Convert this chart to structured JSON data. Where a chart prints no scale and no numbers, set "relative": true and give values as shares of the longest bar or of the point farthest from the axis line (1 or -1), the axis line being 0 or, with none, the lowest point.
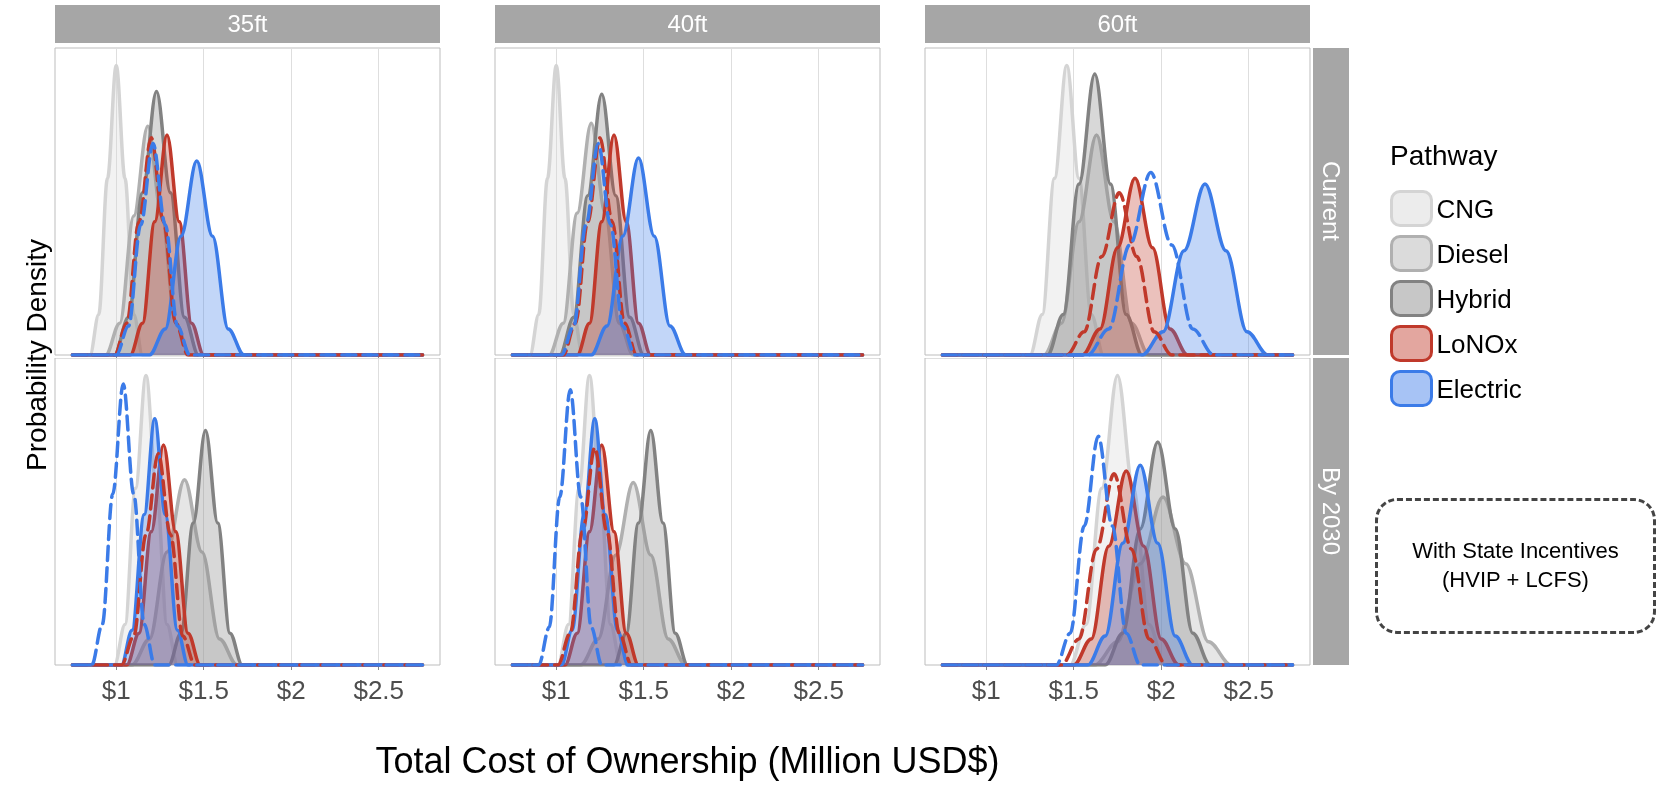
{
  "chart_data": [
    {
      "type": "area",
      "title": "35ft",
      "ylabel": "Probability Density",
      "relative": true,
      "grid": "x",
      "tick_labels": false,
      "xlim": [
        0.65,
        2.85
      ],
      "xticks": [
        {
          "value": 1,
          "label": null
        },
        {
          "value": 1.5,
          "label": null
        },
        {
          "value": 2,
          "label": null
        },
        {
          "value": 2.5,
          "label": null
        }
      ],
      "series": [
        {
          "color": "#d4d4d4",
          "x": [
            0.75,
            0.85,
            0.9,
            0.95,
            1.0,
            1.05,
            1.1,
            1.15,
            2.75
          ],
          "values": [
            0,
            0,
            0.14,
            0.61,
            1,
            0.61,
            0.14,
            0,
            0
          ]
        },
        {
          "color": "#b0b0b0",
          "x": [
            0.75,
            0.94,
            1.02,
            1.1,
            1.18,
            1.26,
            1.34,
            1.42,
            2.75
          ],
          "values": [
            0,
            0,
            0.11,
            0.48,
            0.79,
            0.48,
            0.11,
            0,
            0
          ]
        },
        {
          "color": "#828282",
          "x": [
            0.75,
            0.99,
            1.07,
            1.15,
            1.23,
            1.31,
            1.39,
            1.47,
            2.75
          ],
          "values": [
            0,
            0,
            0.13,
            0.56,
            0.91,
            0.56,
            0.13,
            0,
            0
          ]
        },
        {
          "color": "#c0392b",
          "x": [
            0.75,
            1.08,
            1.15,
            1.22,
            1.29,
            1.36,
            1.43,
            1.5,
            2.75
          ],
          "values": [
            0,
            0,
            0.11,
            0.46,
            0.76,
            0.46,
            0.11,
            0,
            0
          ]
        },
        {
          "color": "#3b7be8",
          "x": [
            0.75,
            1.19,
            1.28,
            1.37,
            1.46,
            1.55,
            1.64,
            1.73,
            2.75
          ],
          "values": [
            0,
            0,
            0.09,
            0.41,
            0.67,
            0.41,
            0.09,
            0,
            0
          ]
        },
        {
          "type": "line",
          "line_style": "dashed",
          "color": "#c0392b",
          "x": [
            0.75,
            0.99,
            1.06,
            1.13,
            1.2,
            1.27,
            1.34,
            1.41,
            2.75
          ],
          "values": [
            0,
            0,
            0.11,
            0.46,
            0.75,
            0.46,
            0.11,
            0,
            0
          ]
        },
        {
          "type": "line",
          "line_style": "dashed",
          "color": "#3b7be8",
          "x": [
            0.75,
            1.0,
            1.07,
            1.14,
            1.21,
            1.28,
            1.35,
            1.42,
            2.75
          ],
          "values": [
            0,
            0,
            0.1,
            0.45,
            0.73,
            0.45,
            0.1,
            0,
            0
          ]
        }
      ]
    },
    {
      "type": "area",
      "title": "40ft",
      "relative": true,
      "grid": "x",
      "tick_labels": false,
      "xlim": [
        0.65,
        2.85
      ],
      "xticks": [
        {
          "value": 1,
          "label": null
        },
        {
          "value": 1.5,
          "label": null
        },
        {
          "value": 2,
          "label": null
        },
        {
          "value": 2.5,
          "label": null
        }
      ],
      "series": [
        {
          "color": "#d4d4d4",
          "x": [
            0.75,
            0.85,
            0.9,
            0.95,
            1.0,
            1.05,
            1.1,
            1.15,
            2.75
          ],
          "values": [
            0,
            0,
            0.14,
            0.61,
            1,
            0.61,
            0.14,
            0,
            0
          ]
        },
        {
          "color": "#b0b0b0",
          "x": [
            0.75,
            0.96,
            1.04,
            1.12,
            1.2,
            1.28,
            1.36,
            1.44,
            2.75
          ],
          "values": [
            0,
            0,
            0.11,
            0.49,
            0.8,
            0.49,
            0.11,
            0,
            0
          ]
        },
        {
          "color": "#828282",
          "x": [
            0.75,
            1.02,
            1.1,
            1.18,
            1.26,
            1.34,
            1.42,
            1.5,
            2.75
          ],
          "values": [
            0,
            0,
            0.13,
            0.55,
            0.9,
            0.55,
            0.13,
            0,
            0
          ]
        },
        {
          "color": "#c0392b",
          "x": [
            0.75,
            1.12,
            1.19,
            1.26,
            1.33,
            1.4,
            1.47,
            1.54,
            2.75
          ],
          "values": [
            0,
            0,
            0.11,
            0.46,
            0.76,
            0.46,
            0.11,
            0,
            0
          ]
        },
        {
          "color": "#3b7be8",
          "x": [
            0.75,
            1.2,
            1.29,
            1.38,
            1.47,
            1.56,
            1.65,
            1.74,
            2.75
          ],
          "values": [
            0,
            0,
            0.1,
            0.41,
            0.68,
            0.41,
            0.1,
            0,
            0
          ]
        },
        {
          "type": "line",
          "line_style": "dashed",
          "color": "#c0392b",
          "x": [
            0.75,
            1.04,
            1.11,
            1.18,
            1.25,
            1.32,
            1.39,
            1.46,
            2.75
          ],
          "values": [
            0,
            0,
            0.11,
            0.46,
            0.75,
            0.46,
            0.11,
            0,
            0
          ]
        },
        {
          "type": "line",
          "line_style": "dashed",
          "color": "#3b7be8",
          "x": [
            0.75,
            1.03,
            1.1,
            1.17,
            1.24,
            1.31,
            1.38,
            1.45,
            2.75
          ],
          "values": [
            0,
            0,
            0.1,
            0.45,
            0.73,
            0.45,
            0.1,
            0,
            0
          ]
        }
      ]
    },
    {
      "type": "area",
      "title": "60ft",
      "annotations": [
        "Current"
      ],
      "legend": "right",
      "legend_title": "Pathway",
      "relative": true,
      "grid": "x",
      "tick_labels": false,
      "xlim": [
        0.65,
        2.85
      ],
      "xticks": [
        {
          "value": 1,
          "label": null
        },
        {
          "value": 1.5,
          "label": null
        },
        {
          "value": 2,
          "label": null
        },
        {
          "value": 2.5,
          "label": null
        }
      ],
      "series": [
        {
          "name": "CNG",
          "color": "#d4d4d4",
          "x": [
            0.75,
            1.25,
            1.32,
            1.39,
            1.46,
            1.53,
            1.6,
            1.67,
            2.75
          ],
          "values": [
            0,
            0,
            0.14,
            0.61,
            1,
            0.61,
            0.14,
            0,
            0
          ]
        },
        {
          "name": "Diesel",
          "color": "#b0b0b0",
          "x": [
            0.75,
            1.33,
            1.43,
            1.53,
            1.63,
            1.73,
            1.83,
            1.93,
            2.75
          ],
          "values": [
            0,
            0,
            0.11,
            0.46,
            0.76,
            0.46,
            0.11,
            0,
            0
          ]
        },
        {
          "name": "Hybrid",
          "color": "#828282",
          "x": [
            0.75,
            1.35,
            1.44,
            1.53,
            1.62,
            1.71,
            1.8,
            1.89,
            2.75
          ],
          "values": [
            0,
            0,
            0.14,
            0.59,
            0.97,
            0.59,
            0.14,
            0,
            0
          ]
        },
        {
          "name": "LoNOx",
          "color": "#c0392b",
          "x": [
            0.75,
            1.55,
            1.65,
            1.75,
            1.85,
            1.95,
            2.05,
            2.15,
            2.75
          ],
          "values": [
            0,
            0,
            0.09,
            0.37,
            0.61,
            0.37,
            0.09,
            0,
            0
          ]
        },
        {
          "name": "Electric",
          "color": "#3b7be8",
          "x": [
            0.75,
            1.89,
            2.01,
            2.13,
            2.25,
            2.37,
            2.49,
            2.61,
            2.75
          ],
          "values": [
            0,
            0,
            0.08,
            0.36,
            0.59,
            0.36,
            0.08,
            0,
            0
          ]
        },
        {
          "type": "line",
          "line_style": "dashed",
          "color": "#c0392b",
          "x": [
            0.75,
            1.46,
            1.56,
            1.66,
            1.76,
            1.86,
            1.96,
            2.06,
            2.75
          ],
          "values": [
            0,
            0,
            0.08,
            0.34,
            0.56,
            0.34,
            0.08,
            0,
            0
          ]
        },
        {
          "type": "line",
          "line_style": "dashed",
          "color": "#3b7be8",
          "x": [
            0.75,
            1.58,
            1.7,
            1.82,
            1.94,
            2.06,
            2.18,
            2.3,
            2.75
          ],
          "values": [
            0,
            0,
            0.09,
            0.38,
            0.63,
            0.38,
            0.09,
            0,
            0
          ]
        }
      ]
    },
    {
      "type": "area",
      "relative": true,
      "grid": "x",
      "tick_labels": "x",
      "xlim": [
        0.65,
        2.85
      ],
      "xticks": [
        {
          "value": 1,
          "label": "$1"
        },
        {
          "value": 1.5,
          "label": "$1.5"
        },
        {
          "value": 2,
          "label": "$2"
        },
        {
          "value": 2.5,
          "label": "$2.5"
        }
      ],
      "series": [
        {
          "color": "#d4d4d4",
          "x": [
            0.75,
            0.99,
            1.05,
            1.11,
            1.17,
            1.23,
            1.29,
            1.35,
            2.75
          ],
          "values": [
            0,
            0,
            0.14,
            0.61,
            1,
            0.61,
            0.14,
            0,
            0
          ]
        },
        {
          "color": "#b0b0b0",
          "x": [
            0.75,
            1.09,
            1.19,
            1.29,
            1.39,
            1.49,
            1.59,
            1.69,
            2.75
          ],
          "values": [
            0,
            0,
            0.09,
            0.39,
            0.64,
            0.39,
            0.09,
            0,
            0
          ]
        },
        {
          "color": "#828282",
          "x": [
            0.75,
            1.3,
            1.37,
            1.44,
            1.51,
            1.58,
            1.65,
            1.72,
            2.75
          ],
          "values": [
            0,
            0,
            0.11,
            0.49,
            0.81,
            0.49,
            0.11,
            0,
            0
          ]
        },
        {
          "color": "#c0392b",
          "x": [
            0.75,
            1.06,
            1.13,
            1.2,
            1.27,
            1.34,
            1.41,
            1.48,
            2.75
          ],
          "values": [
            0,
            0,
            0.11,
            0.46,
            0.76,
            0.46,
            0.11,
            0,
            0
          ]
        },
        {
          "color": "#3b7be8",
          "x": [
            0.75,
            1.03,
            1.09,
            1.16,
            1.22,
            1.28,
            1.35,
            1.41,
            2.75
          ],
          "values": [
            0,
            0,
            0.12,
            0.52,
            0.85,
            0.52,
            0.12,
            0,
            0
          ]
        },
        {
          "type": "line",
          "line_style": "dashed",
          "color": "#c0392b",
          "x": [
            0.75,
            1.03,
            1.1,
            1.17,
            1.24,
            1.31,
            1.38,
            1.45,
            2.75
          ],
          "values": [
            0,
            0,
            0.1,
            0.45,
            0.73,
            0.45,
            0.1,
            0,
            0
          ]
        },
        {
          "type": "line",
          "line_style": "dashed",
          "color": "#3b7be8",
          "x": [
            0.75,
            0.86,
            0.92,
            0.98,
            1.04,
            1.1,
            1.16,
            1.22,
            2.75
          ],
          "values": [
            0,
            0,
            0.14,
            0.59,
            0.97,
            0.59,
            0.14,
            0,
            0
          ]
        }
      ]
    },
    {
      "type": "area",
      "xlabel": "Total Cost of Ownership (Million USD$)",
      "relative": true,
      "grid": "x",
      "tick_labels": "x",
      "xlim": [
        0.65,
        2.85
      ],
      "xticks": [
        {
          "value": 1,
          "label": "$1"
        },
        {
          "value": 1.5,
          "label": "$1.5"
        },
        {
          "value": 2,
          "label": "$2"
        },
        {
          "value": 2.5,
          "label": "$2.5"
        }
      ],
      "series": [
        {
          "color": "#d4d4d4",
          "x": [
            0.75,
            1.01,
            1.07,
            1.13,
            1.19,
            1.25,
            1.31,
            1.37,
            2.75
          ],
          "values": [
            0,
            0,
            0.14,
            0.61,
            1,
            0.61,
            0.14,
            0,
            0
          ]
        },
        {
          "color": "#b0b0b0",
          "x": [
            0.75,
            1.14,
            1.24,
            1.34,
            1.44,
            1.54,
            1.64,
            1.74,
            2.75
          ],
          "values": [
            0,
            0,
            0.09,
            0.38,
            0.63,
            0.38,
            0.09,
            0,
            0
          ]
        },
        {
          "color": "#828282",
          "x": [
            0.75,
            1.33,
            1.4,
            1.47,
            1.54,
            1.61,
            1.68,
            1.75,
            2.75
          ],
          "values": [
            0,
            0,
            0.11,
            0.49,
            0.81,
            0.49,
            0.11,
            0,
            0
          ]
        },
        {
          "color": "#c0392b",
          "x": [
            0.75,
            1.05,
            1.12,
            1.19,
            1.26,
            1.33,
            1.4,
            1.47,
            2.75
          ],
          "values": [
            0,
            0,
            0.11,
            0.46,
            0.76,
            0.46,
            0.11,
            0,
            0
          ]
        },
        {
          "color": "#3b7be8",
          "x": [
            0.75,
            1.03,
            1.09,
            1.16,
            1.22,
            1.28,
            1.35,
            1.41,
            2.75
          ],
          "values": [
            0,
            0,
            0.12,
            0.52,
            0.85,
            0.52,
            0.12,
            0,
            0
          ]
        },
        {
          "type": "line",
          "line_style": "dashed",
          "color": "#c0392b",
          "x": [
            0.75,
            1.01,
            1.08,
            1.15,
            1.22,
            1.29,
            1.36,
            1.43,
            2.75
          ],
          "values": [
            0,
            0,
            0.11,
            0.46,
            0.75,
            0.46,
            0.11,
            0,
            0
          ]
        },
        {
          "type": "line",
          "line_style": "dashed",
          "color": "#3b7be8",
          "x": [
            0.75,
            0.9,
            0.96,
            1.02,
            1.08,
            1.14,
            1.2,
            1.26,
            2.75
          ],
          "values": [
            0,
            0,
            0.13,
            0.58,
            0.95,
            0.58,
            0.13,
            0,
            0
          ]
        }
      ]
    },
    {
      "type": "area",
      "annotations": [
        "By 2030",
        "With State Incentives (HVIP + LCFS)"
      ],
      "relative": true,
      "grid": "x",
      "tick_labels": "x",
      "xlim": [
        0.65,
        2.85
      ],
      "xticks": [
        {
          "value": 1,
          "label": "$1"
        },
        {
          "value": 1.5,
          "label": "$1.5"
        },
        {
          "value": 2,
          "label": "$2"
        },
        {
          "value": 2.5,
          "label": "$2.5"
        }
      ],
      "series": [
        {
          "color": "#d4d4d4",
          "x": [
            0.75,
            1.48,
            1.57,
            1.66,
            1.75,
            1.84,
            1.93,
            2.02,
            2.75
          ],
          "values": [
            0,
            0,
            0.14,
            0.61,
            1,
            0.61,
            0.14,
            0,
            0
          ]
        },
        {
          "color": "#b0b0b0",
          "x": [
            0.75,
            1.62,
            1.75,
            1.88,
            2.01,
            2.14,
            2.27,
            2.4,
            2.75
          ],
          "values": [
            0,
            0,
            0.08,
            0.35,
            0.58,
            0.35,
            0.08,
            0,
            0
          ]
        },
        {
          "color": "#828282",
          "x": [
            0.75,
            1.68,
            1.78,
            1.88,
            1.98,
            2.08,
            2.18,
            2.28,
            2.75
          ],
          "values": [
            0,
            0,
            0.11,
            0.47,
            0.77,
            0.47,
            0.11,
            0,
            0
          ]
        },
        {
          "color": "#c0392b",
          "x": [
            0.75,
            1.5,
            1.6,
            1.7,
            1.8,
            1.9,
            2.0,
            2.1,
            2.75
          ],
          "values": [
            0,
            0,
            0.09,
            0.41,
            0.67,
            0.41,
            0.09,
            0,
            0
          ]
        },
        {
          "color": "#3b7be8",
          "x": [
            0.75,
            1.58,
            1.68,
            1.78,
            1.88,
            1.98,
            2.08,
            2.18,
            2.75
          ],
          "values": [
            0,
            0,
            0.1,
            0.42,
            0.69,
            0.42,
            0.1,
            0,
            0
          ]
        },
        {
          "type": "line",
          "line_style": "dashed",
          "color": "#c0392b",
          "x": [
            0.75,
            1.43,
            1.53,
            1.63,
            1.73,
            1.83,
            1.93,
            2.03,
            2.75
          ],
          "values": [
            0,
            0,
            0.09,
            0.4,
            0.66,
            0.4,
            0.09,
            0,
            0
          ]
        },
        {
          "type": "line",
          "line_style": "dashed",
          "color": "#3b7be8",
          "x": [
            0.75,
            1.4,
            1.48,
            1.56,
            1.64,
            1.72,
            1.8,
            1.88,
            2.75
          ],
          "values": [
            0,
            0,
            0.11,
            0.48,
            0.79,
            0.48,
            0.11,
            0,
            0
          ]
        }
      ]
    }
  ]
}
